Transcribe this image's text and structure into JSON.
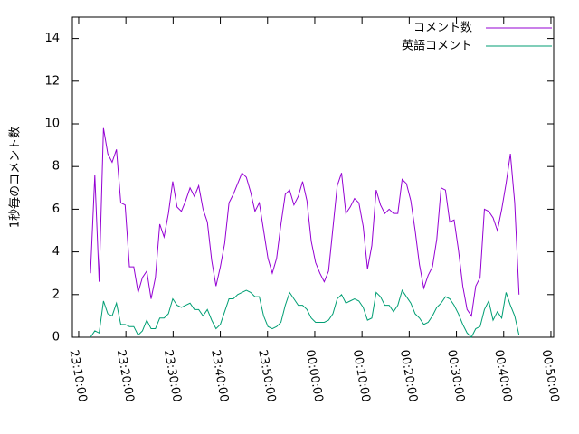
{
  "chart_data": {
    "type": "line",
    "ylabel": "1秒毎のコメント数",
    "x": [
      "23:12:30",
      "23:13:25",
      "23:14:20",
      "23:15:15",
      "23:16:10",
      "23:17:05",
      "23:18:00",
      "23:18:55",
      "23:19:50",
      "23:20:45",
      "23:21:40",
      "23:22:35",
      "23:23:30",
      "23:24:25",
      "23:25:20",
      "23:26:15",
      "23:27:10",
      "23:28:05",
      "23:29:00",
      "23:29:55",
      "23:30:50",
      "23:31:45",
      "23:32:40",
      "23:33:35",
      "23:34:30",
      "23:35:25",
      "23:36:20",
      "23:37:15",
      "23:38:10",
      "23:39:05",
      "23:40:00",
      "23:40:55",
      "23:41:50",
      "23:42:45",
      "23:43:40",
      "23:44:35",
      "23:45:30",
      "23:46:25",
      "23:47:20",
      "23:48:15",
      "23:49:10",
      "23:50:05",
      "23:51:00",
      "23:51:55",
      "23:52:50",
      "23:53:45",
      "23:54:40",
      "23:55:35",
      "23:56:30",
      "23:57:25",
      "23:58:20",
      "23:59:15",
      "00:00:10",
      "00:01:05",
      "00:02:00",
      "00:02:55",
      "00:03:50",
      "00:04:45",
      "00:05:40",
      "00:06:35",
      "00:07:30",
      "00:08:25",
      "00:09:20",
      "00:10:15",
      "00:11:10",
      "00:12:05",
      "00:13:00",
      "00:13:55",
      "00:14:50",
      "00:15:45",
      "00:16:40",
      "00:17:35",
      "00:18:30",
      "00:19:25",
      "00:20:20",
      "00:21:15",
      "00:22:10",
      "00:23:05",
      "00:24:00",
      "00:24:55",
      "00:25:50",
      "00:26:45",
      "00:27:40",
      "00:28:35",
      "00:29:30",
      "00:30:25",
      "00:31:20",
      "00:32:15",
      "00:33:10",
      "00:34:05",
      "00:35:00",
      "00:35:55",
      "00:36:50",
      "00:37:45",
      "00:38:40",
      "00:39:35",
      "00:40:30",
      "00:41:25",
      "00:42:20",
      "00:43:15"
    ],
    "series": [
      {
        "name": "コメント数",
        "color": "#9400d3",
        "values": [
          3.0,
          7.6,
          2.6,
          9.8,
          8.6,
          8.2,
          8.8,
          6.3,
          6.2,
          3.3,
          3.3,
          2.1,
          2.8,
          3.1,
          1.8,
          2.8,
          5.3,
          4.7,
          5.8,
          7.3,
          6.1,
          5.9,
          6.4,
          7.0,
          6.6,
          7.1,
          6.0,
          5.4,
          3.6,
          2.4,
          3.3,
          4.4,
          6.3,
          6.7,
          7.2,
          7.7,
          7.5,
          6.8,
          5.9,
          6.3,
          5.0,
          3.7,
          3.0,
          3.7,
          5.3,
          6.7,
          6.9,
          6.2,
          6.6,
          7.3,
          6.4,
          4.5,
          3.5,
          3.0,
          2.6,
          3.1,
          5.1,
          7.1,
          7.7,
          5.8,
          6.1,
          6.5,
          6.3,
          5.2,
          3.2,
          4.3,
          6.9,
          6.2,
          5.8,
          6.0,
          5.8,
          5.8,
          7.4,
          7.2,
          6.4,
          5.0,
          3.4,
          2.3,
          2.9,
          3.3,
          4.6,
          7.0,
          6.9,
          5.4,
          5.5,
          4.1,
          2.4,
          1.3,
          1.0,
          2.4,
          2.8,
          6.0,
          5.9,
          5.6,
          5.0,
          6.0,
          7.2,
          8.6,
          6.3,
          2.0
        ]
      },
      {
        "name": "英語コメント",
        "color": "#009e73",
        "values": [
          0.0,
          0.3,
          0.2,
          1.7,
          1.1,
          1.0,
          1.6,
          0.6,
          0.6,
          0.5,
          0.5,
          0.1,
          0.3,
          0.8,
          0.4,
          0.4,
          0.9,
          0.9,
          1.1,
          1.8,
          1.5,
          1.4,
          1.5,
          1.6,
          1.3,
          1.3,
          1.0,
          1.3,
          0.8,
          0.4,
          0.6,
          1.2,
          1.8,
          1.8,
          2.0,
          2.1,
          2.2,
          2.1,
          1.9,
          1.9,
          1.0,
          0.5,
          0.4,
          0.5,
          0.7,
          1.5,
          2.1,
          1.8,
          1.5,
          1.5,
          1.3,
          0.9,
          0.7,
          0.7,
          0.7,
          0.8,
          1.1,
          1.8,
          2.0,
          1.6,
          1.7,
          1.8,
          1.7,
          1.4,
          0.8,
          0.9,
          2.1,
          1.9,
          1.5,
          1.5,
          1.2,
          1.5,
          2.2,
          1.9,
          1.6,
          1.1,
          0.9,
          0.6,
          0.7,
          1.0,
          1.4,
          1.6,
          1.9,
          1.8,
          1.5,
          1.1,
          0.6,
          0.2,
          0.0,
          0.4,
          0.5,
          1.3,
          1.7,
          0.8,
          1.2,
          0.9,
          2.1,
          1.5,
          1.0,
          0.1
        ]
      }
    ],
    "xlim": [
      "23:08:40",
      "00:50:35"
    ],
    "xticks": [
      "23:10:00",
      "23:20:00",
      "23:30:00",
      "23:40:00",
      "23:50:00",
      "00:00:00",
      "00:10:00",
      "00:20:00",
      "00:30:00",
      "00:40:00",
      "00:50:00"
    ],
    "ylim": [
      0,
      15
    ],
    "yticks": [
      0,
      2,
      4,
      6,
      8,
      10,
      12,
      14
    ],
    "legend": "top-right",
    "grid": false
  }
}
